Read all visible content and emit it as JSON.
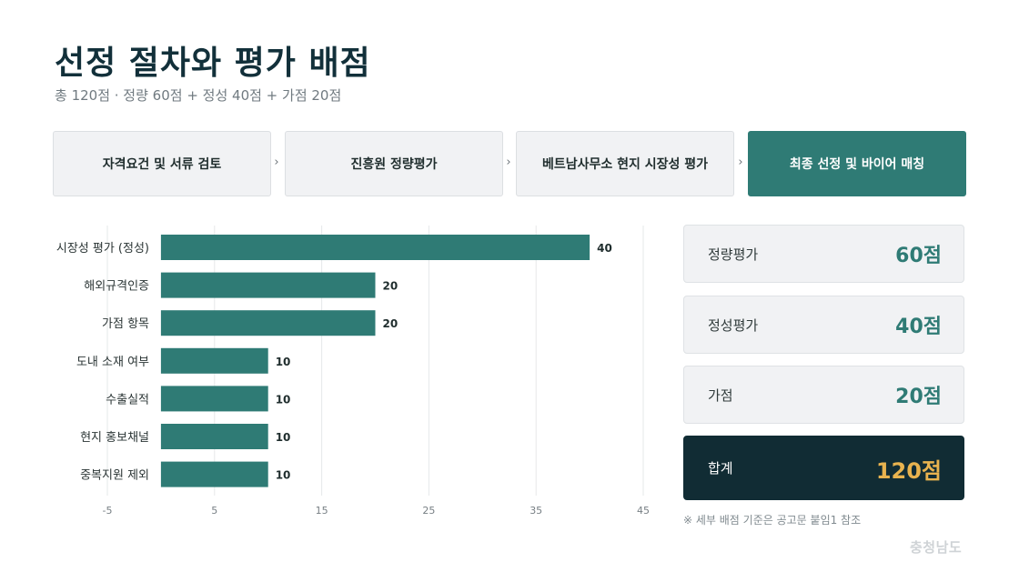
{
  "header": {
    "title": "선정 절차와 평가 배점",
    "subtitle": "총 120점 · 정량 60점 + 정성 40점 + 가점 20점"
  },
  "steps": [
    {
      "label": "자격요건 및 서류 검토"
    },
    {
      "label": "진흥원 정량평가"
    },
    {
      "label": "베트남사무소 현지 시장성 평가"
    },
    {
      "label": "최종 선정 및 바이어 매칭"
    }
  ],
  "step_arrow": "›",
  "chart_data": {
    "type": "bar",
    "orientation": "horizontal",
    "categories": [
      "시장성 평가 (정성)",
      "해외규격인증",
      "가점 항목",
      "도내 소재 여부",
      "수출실적",
      "현지 홍보채널",
      "중복지원 제외"
    ],
    "values": [
      40,
      20,
      20,
      10,
      10,
      10,
      10
    ],
    "xlim": [
      -5,
      45
    ],
    "xticks": [
      -5,
      5,
      15,
      25,
      35,
      45
    ],
    "grid": true,
    "bar_color": "#2f7b75"
  },
  "scores": [
    {
      "label": "정량평가",
      "value": "60점"
    },
    {
      "label": "정성평가",
      "value": "40점"
    },
    {
      "label": "가점",
      "value": "20점"
    }
  ],
  "total": {
    "label": "합계",
    "value": "120점"
  },
  "note": "※ 세부 배점 기준은 공고문 붙임1 참조",
  "logo": "충청남도"
}
